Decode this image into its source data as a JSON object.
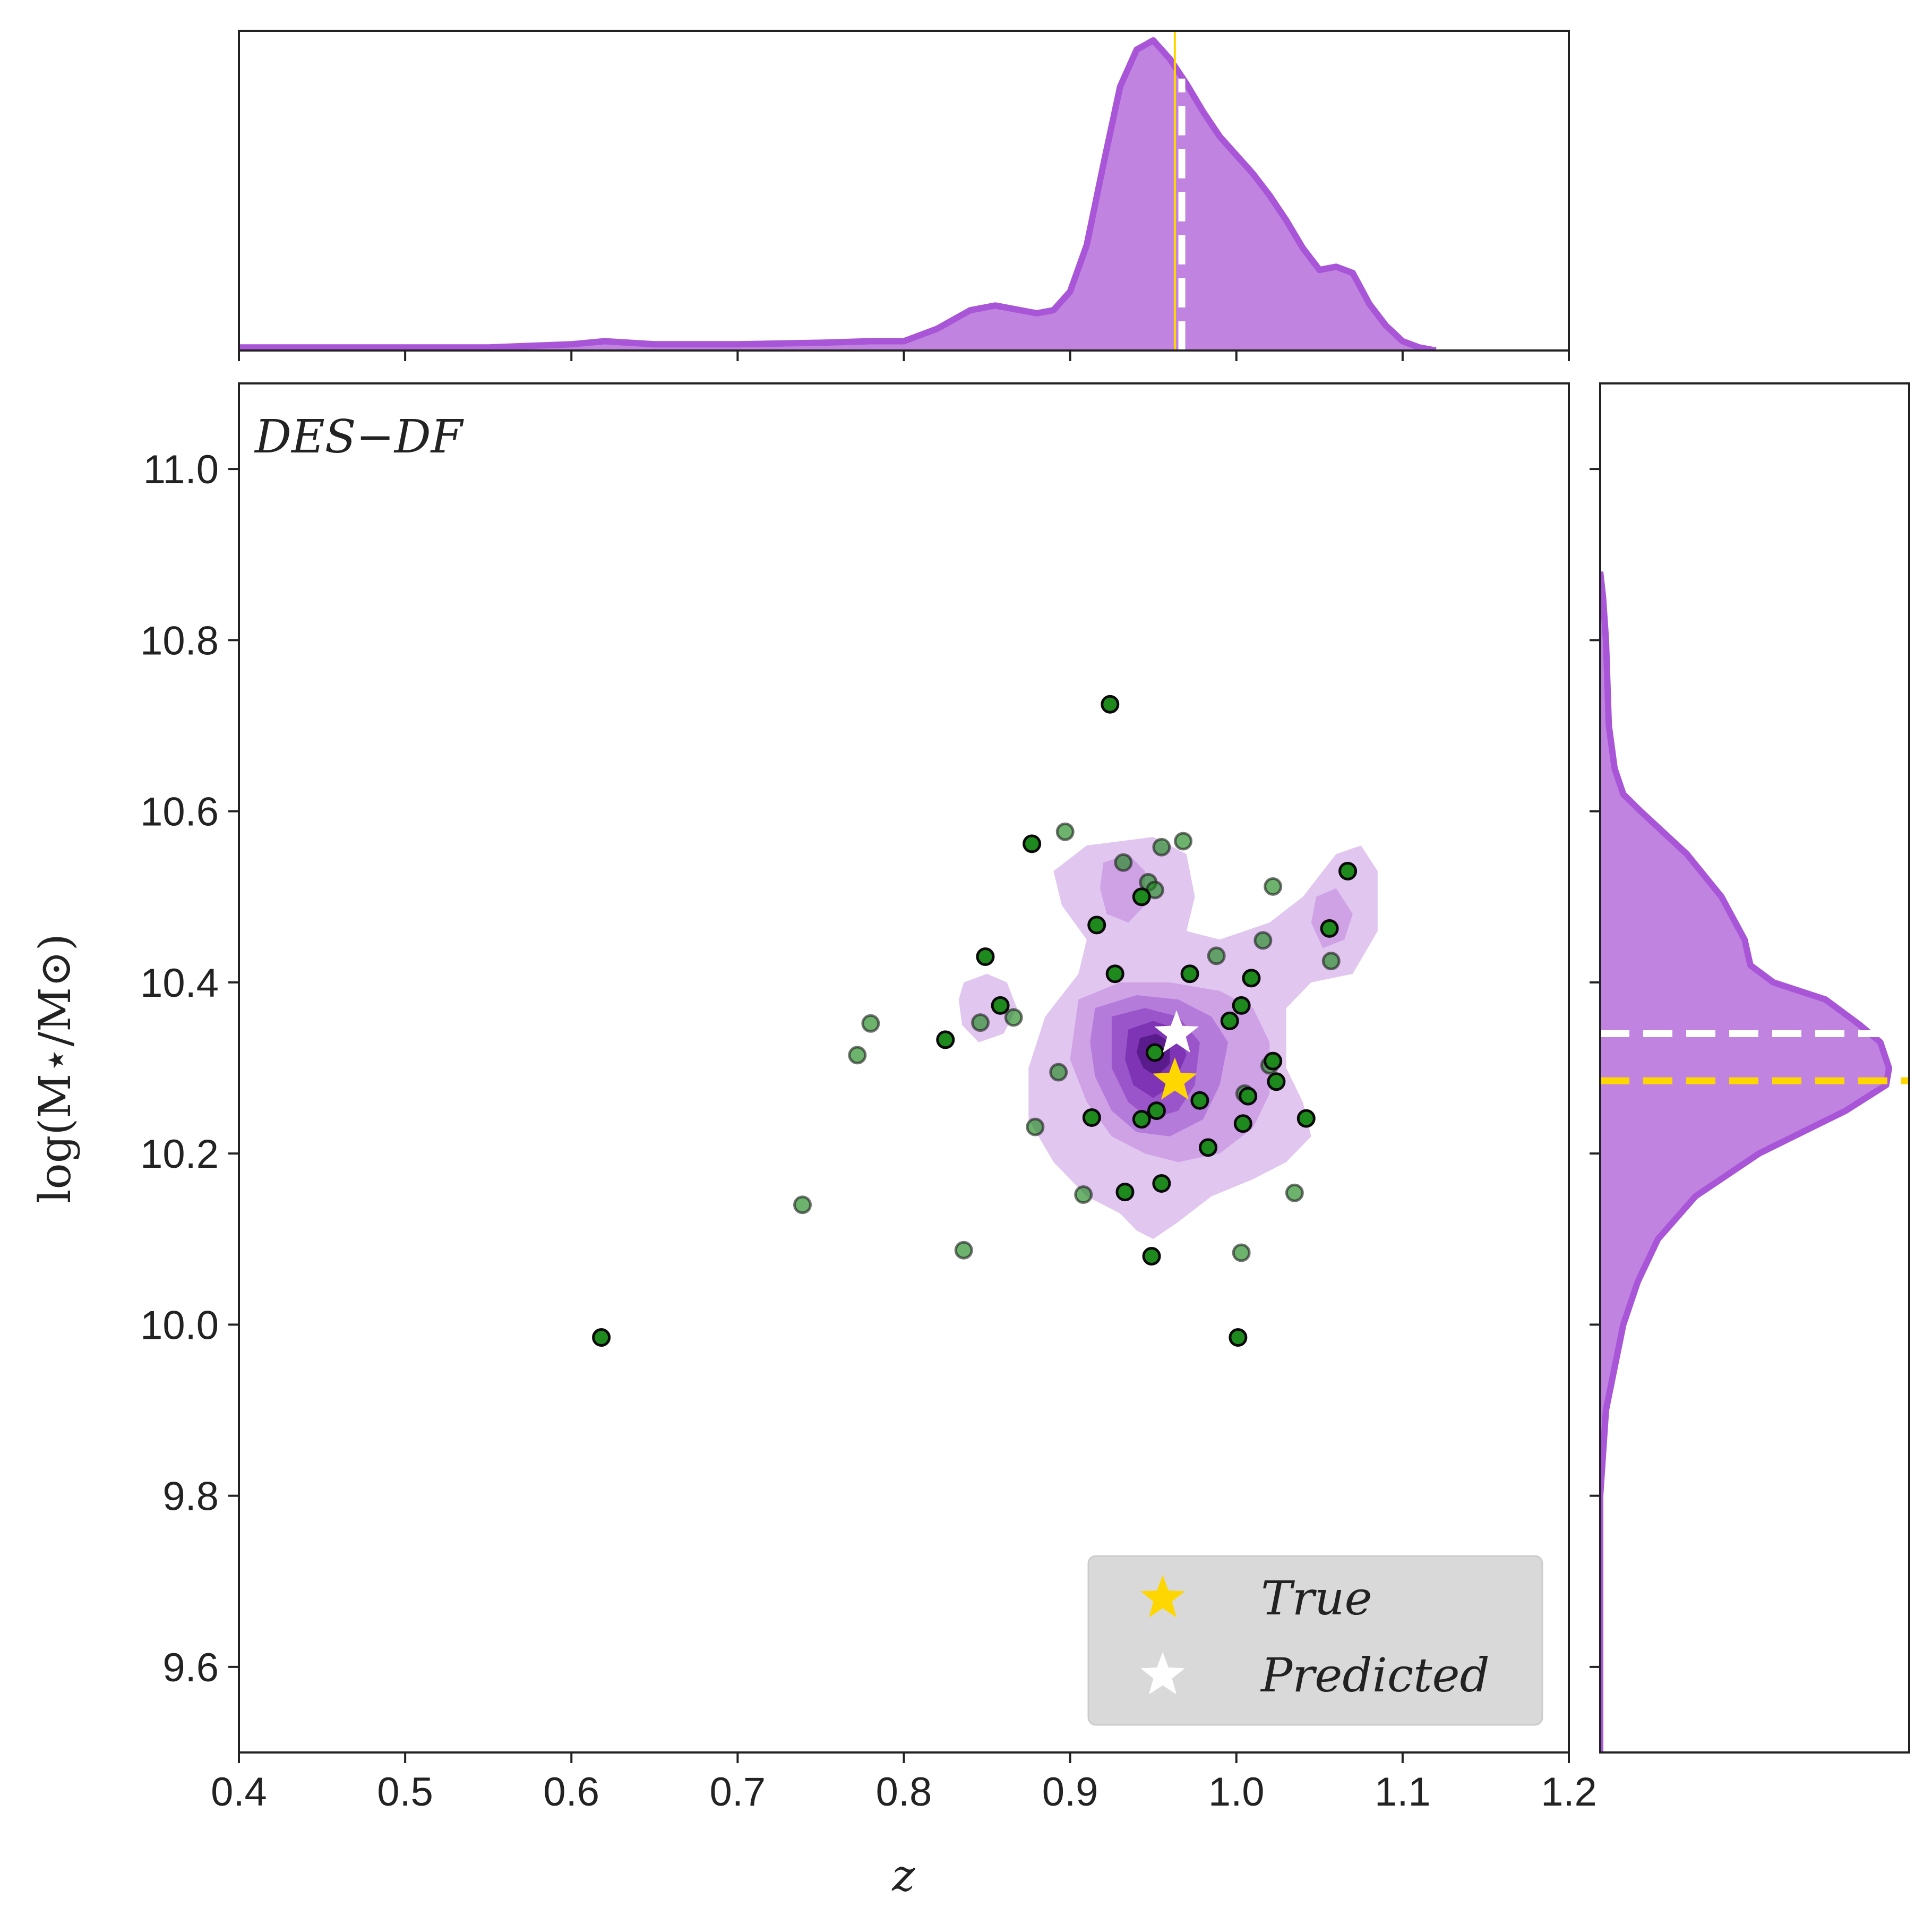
{
  "chart_data": {
    "type": "scatter",
    "annotation": "DES−DF",
    "xlabel": "z",
    "ylabel": "log(M⋆/M⊙)",
    "xlim": [
      0.4,
      1.2
    ],
    "ylim": [
      9.5,
      11.1
    ],
    "x_ticks": [
      "0.4",
      "0.5",
      "0.6",
      "0.7",
      "0.8",
      "0.9",
      "1.0",
      "1.1",
      "1.2"
    ],
    "y_ticks": [
      "9.6",
      "9.8",
      "10.0",
      "10.2",
      "10.4",
      "10.6",
      "10.8",
      "11.0"
    ],
    "grid": false,
    "legend": {
      "position": "bottom-right",
      "entries": [
        {
          "label": "True",
          "color": "#FFD700",
          "marker": "star"
        },
        {
          "label": "Predicted",
          "color": "#FFFFFF",
          "marker": "star"
        }
      ]
    },
    "true_point": {
      "x": 0.963,
      "y": 10.285
    },
    "predicted_point": {
      "x": 0.964,
      "y": 10.34
    },
    "colors": {
      "kde_fill": "#C084E0",
      "kde_line": "#A855D8",
      "scatter_fill": "#1E8A1E",
      "scatter_edge": "#0A0A0A",
      "true_color": "#FFD700",
      "predicted_color": "#FFFFFF"
    },
    "series": [
      {
        "points_strong": [
          [
            0.924,
            10.725
          ],
          [
            0.877,
            10.562
          ],
          [
            0.849,
            10.43
          ],
          [
            0.858,
            10.373
          ],
          [
            0.825,
            10.333
          ],
          [
            0.916,
            10.467
          ],
          [
            0.943,
            10.5
          ],
          [
            0.927,
            10.41
          ],
          [
            0.951,
            10.318
          ],
          [
            0.972,
            10.41
          ],
          [
            0.996,
            10.355
          ],
          [
            1.003,
            10.373
          ],
          [
            1.009,
            10.405
          ],
          [
            0.978,
            10.262
          ],
          [
            1.022,
            10.308
          ],
          [
            1.024,
            10.284
          ],
          [
            1.007,
            10.267
          ],
          [
            1.004,
            10.235
          ],
          [
            0.983,
            10.207
          ],
          [
            0.913,
            10.242
          ],
          [
            0.943,
            10.24
          ],
          [
            0.952,
            10.25
          ],
          [
            0.933,
            10.155
          ],
          [
            0.955,
            10.165
          ],
          [
            1.042,
            10.241
          ],
          [
            1.056,
            10.463
          ],
          [
            1.067,
            10.53
          ],
          [
            0.949,
            10.08
          ],
          [
            1.001,
            9.985
          ],
          [
            0.618,
            9.985
          ]
        ],
        "points_faded": [
          [
            0.897,
            10.576
          ],
          [
            0.932,
            10.54
          ],
          [
            0.955,
            10.558
          ],
          [
            0.968,
            10.565
          ],
          [
            0.947,
            10.517
          ],
          [
            0.951,
            10.508
          ],
          [
            1.022,
            10.512
          ],
          [
            1.016,
            10.449
          ],
          [
            0.988,
            10.431
          ],
          [
            1.057,
            10.425
          ],
          [
            0.866,
            10.359
          ],
          [
            0.846,
            10.353
          ],
          [
            0.78,
            10.352
          ],
          [
            0.772,
            10.315
          ],
          [
            0.893,
            10.295
          ],
          [
            0.879,
            10.231
          ],
          [
            0.908,
            10.152
          ],
          [
            0.739,
            10.14
          ],
          [
            0.836,
            10.087
          ],
          [
            1.003,
            10.084
          ],
          [
            1.035,
            10.154
          ],
          [
            1.02,
            10.303
          ],
          [
            1.005,
            10.27
          ]
        ]
      }
    ],
    "marginal_x": {
      "x": [
        0.4,
        0.55,
        0.6,
        0.62,
        0.65,
        0.7,
        0.75,
        0.78,
        0.8,
        0.82,
        0.84,
        0.855,
        0.87,
        0.88,
        0.89,
        0.9,
        0.91,
        0.92,
        0.93,
        0.94,
        0.95,
        0.96,
        0.97,
        0.98,
        0.99,
        1.0,
        1.01,
        1.02,
        1.03,
        1.04,
        1.05,
        1.06,
        1.07,
        1.08,
        1.09,
        1.1,
        1.11,
        1.12
      ],
      "density": [
        0.01,
        0.01,
        0.02,
        0.03,
        0.02,
        0.02,
        0.025,
        0.03,
        0.03,
        0.07,
        0.13,
        0.145,
        0.13,
        0.12,
        0.13,
        0.19,
        0.34,
        0.6,
        0.85,
        0.97,
        1.0,
        0.94,
        0.86,
        0.77,
        0.69,
        0.63,
        0.57,
        0.5,
        0.42,
        0.33,
        0.26,
        0.27,
        0.25,
        0.15,
        0.08,
        0.03,
        0.01,
        0.0
      ],
      "true_x": 0.963,
      "predicted_x": 0.964
    },
    "marginal_y": {
      "y": [
        9.5,
        9.8,
        9.9,
        9.95,
        10.0,
        10.05,
        10.1,
        10.15,
        10.2,
        10.25,
        10.28,
        10.3,
        10.33,
        10.35,
        10.38,
        10.4,
        10.42,
        10.45,
        10.5,
        10.55,
        10.6,
        10.62,
        10.65,
        10.7,
        10.75,
        10.8,
        10.85,
        10.88
      ],
      "density": [
        0.0,
        0.0,
        0.02,
        0.05,
        0.08,
        0.13,
        0.2,
        0.33,
        0.55,
        0.85,
        0.99,
        1.0,
        0.97,
        0.9,
        0.78,
        0.6,
        0.52,
        0.5,
        0.42,
        0.3,
        0.14,
        0.08,
        0.05,
        0.03,
        0.025,
        0.02,
        0.01,
        0.0
      ],
      "true_y": 10.285,
      "predicted_y": 10.34
    }
  }
}
